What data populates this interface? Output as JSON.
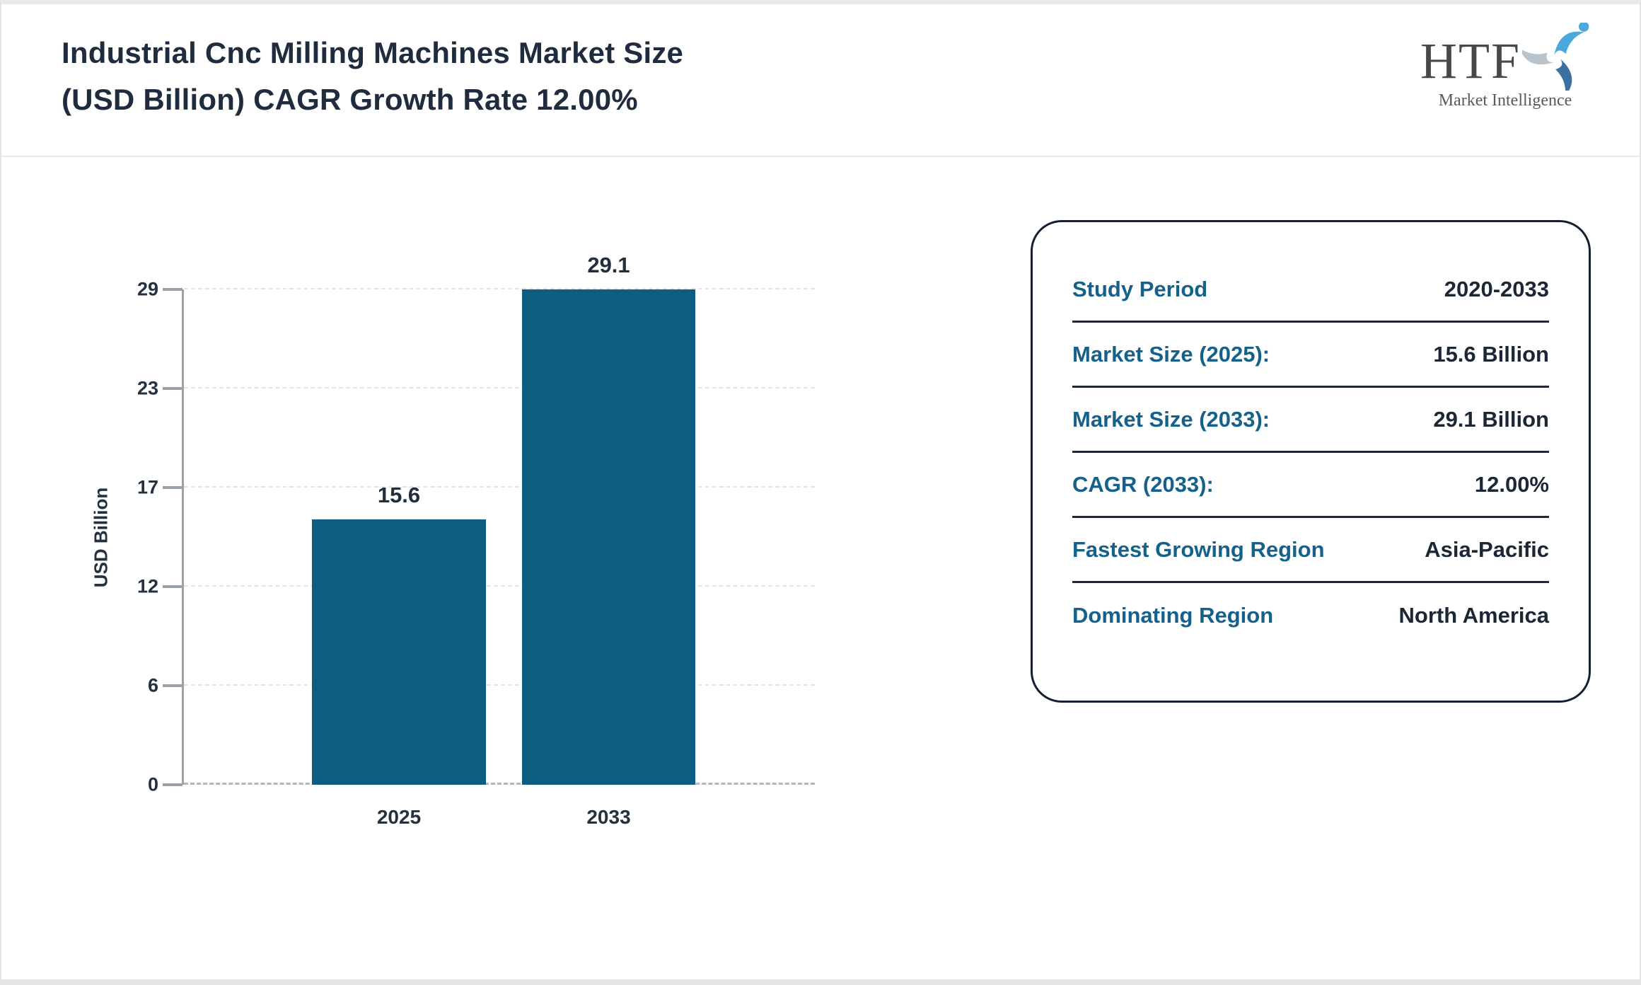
{
  "header": {
    "title_line1": "Industrial Cnc Milling Machines Market Size",
    "title_line2": "(USD Billion) CAGR Growth Rate 12.00%"
  },
  "logo": {
    "text": "HTF",
    "subtext": "Market Intelligence",
    "icon": "tri-swirl-people-icon",
    "colors": {
      "light_blue": "#4aa8db",
      "steel_blue": "#3b71a0",
      "gray": "#b9c3cb"
    }
  },
  "chart_data": {
    "type": "bar",
    "title": "Industrial Cnc Milling Machines Market Size (USD Billion) CAGR Growth Rate 12.00%",
    "categories": [
      "2025",
      "2033"
    ],
    "values": [
      15.6,
      29.1
    ],
    "value_labels": [
      "15.6",
      "29.1"
    ],
    "xlabel": "",
    "ylabel": "USD Billion",
    "ylim": [
      0,
      29.1
    ],
    "ytick_labels": [
      "0",
      "6",
      "12",
      "17",
      "23",
      "29"
    ],
    "grid": "horizontal-dashed",
    "legend": "none",
    "bar_color": "#0e5c80"
  },
  "panel": {
    "rows": [
      {
        "label": "Study Period",
        "value": "2020-2033"
      },
      {
        "label": "Market Size (2025):",
        "value": "15.6 Billion"
      },
      {
        "label": "Market Size (2033):",
        "value": "29.1 Billion"
      },
      {
        "label": "CAGR (2033):",
        "value": "12.00%"
      },
      {
        "label": "Fastest Growing Region",
        "value": "Asia-Pacific"
      },
      {
        "label": "Dominating Region",
        "value": "North America"
      }
    ]
  },
  "colors": {
    "accent_teal": "#15618c",
    "bar": "#0e5c80",
    "dark_text": "#1f2c3e",
    "axis_gray": "#9aa1ab"
  }
}
